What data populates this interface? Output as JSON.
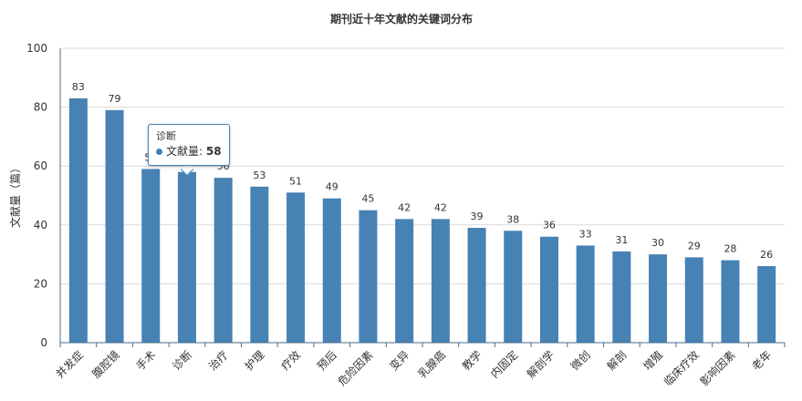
{
  "chart_data": {
    "type": "bar",
    "title": "期刊近十年文献的关键词分布",
    "ylabel": "文献量（篇）",
    "xlabel": "",
    "ylim": [
      0,
      100
    ],
    "yticks": [
      0,
      20,
      40,
      60,
      80,
      100
    ],
    "grid": true,
    "categories": [
      "并发症",
      "腹腔镜",
      "手术",
      "诊断",
      "治疗",
      "护理",
      "疗效",
      "预后",
      "危险因素",
      "变异",
      "乳腺癌",
      "教学",
      "内固定",
      "解剖学",
      "微创",
      "解剖",
      "增殖",
      "临床疗效",
      "影响因素",
      "老年"
    ],
    "values": [
      83,
      79,
      59,
      58,
      56,
      53,
      51,
      49,
      45,
      42,
      42,
      39,
      38,
      36,
      33,
      31,
      30,
      29,
      28,
      26
    ],
    "series": [
      {
        "name": "文献量",
        "color": "#4682b4"
      }
    ]
  },
  "tooltip": {
    "category": "诊断",
    "series_name": "文献量",
    "value": "58"
  }
}
